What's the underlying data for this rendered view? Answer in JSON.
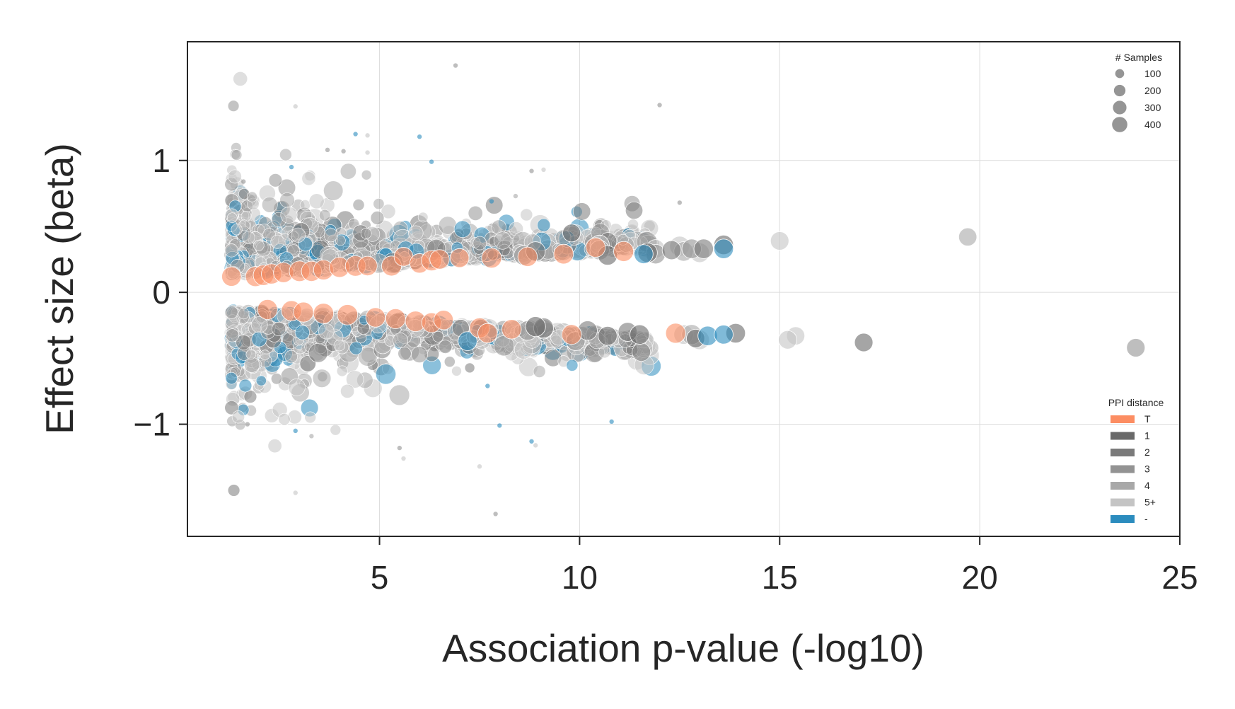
{
  "chart_data": {
    "type": "scatter",
    "xlabel": "Association p-value (-log10)",
    "ylabel": "Effect size (beta)",
    "xlim": [
      0.2,
      25
    ],
    "ylim": [
      -1.85,
      1.9
    ],
    "xticks": [
      5,
      10,
      15,
      20,
      25
    ],
    "yticks": [
      -1,
      0,
      1
    ],
    "ytick_labels": [
      "−1",
      "0",
      "1"
    ],
    "grid": true,
    "size_legend": {
      "title": "# Samples",
      "placement": "top-right",
      "entries": [
        {
          "label": "100",
          "value": 100
        },
        {
          "label": "200",
          "value": 200
        },
        {
          "label": "300",
          "value": 300
        },
        {
          "label": "400",
          "value": 400
        }
      ]
    },
    "color_legend": {
      "title": "PPI distance",
      "placement": "bottom-right",
      "entries": [
        {
          "label": "T",
          "color": "#fc8d62"
        },
        {
          "label": "1",
          "color": "#696969"
        },
        {
          "label": "2",
          "color": "#7a7a7a"
        },
        {
          "label": "3",
          "color": "#939393"
        },
        {
          "label": "4",
          "color": "#a8a8a8"
        },
        {
          "label": "5+",
          "color": "#c4c4c4"
        },
        {
          "label": "-",
          "color": "#2b8cbe"
        }
      ]
    },
    "point_alpha": 0.6,
    "series": [
      {
        "group": "T",
        "points": [
          [
            1.3,
            0.12,
            300
          ],
          [
            1.9,
            0.12,
            320
          ],
          [
            2.1,
            0.13,
            340
          ],
          [
            2.3,
            0.14,
            330
          ],
          [
            2.6,
            0.15,
            320
          ],
          [
            3.0,
            0.16,
            340
          ],
          [
            3.3,
            0.16,
            330
          ],
          [
            3.6,
            0.17,
            320
          ],
          [
            4.0,
            0.19,
            330
          ],
          [
            4.4,
            0.2,
            340
          ],
          [
            4.7,
            0.2,
            300
          ],
          [
            5.3,
            0.2,
            320
          ],
          [
            5.6,
            0.27,
            280
          ],
          [
            6.0,
            0.22,
            300
          ],
          [
            6.3,
            0.24,
            330
          ],
          [
            6.5,
            0.25,
            300
          ],
          [
            7.0,
            0.26,
            280
          ],
          [
            7.8,
            0.26,
            320
          ],
          [
            8.7,
            0.27,
            300
          ],
          [
            9.6,
            0.29,
            310
          ],
          [
            10.4,
            0.34,
            300
          ],
          [
            11.1,
            0.31,
            320
          ],
          [
            2.2,
            -0.13,
            320
          ],
          [
            2.8,
            -0.14,
            330
          ],
          [
            3.1,
            -0.15,
            320
          ],
          [
            3.6,
            -0.16,
            330
          ],
          [
            4.2,
            -0.17,
            340
          ],
          [
            4.9,
            -0.19,
            300
          ],
          [
            5.4,
            -0.2,
            320
          ],
          [
            5.9,
            -0.22,
            340
          ],
          [
            6.3,
            -0.23,
            310
          ],
          [
            6.6,
            -0.21,
            300
          ],
          [
            7.5,
            -0.27,
            320
          ],
          [
            7.7,
            -0.31,
            300
          ],
          [
            8.3,
            -0.28,
            300
          ],
          [
            9.8,
            -0.32,
            310
          ],
          [
            12.4,
            -0.31,
            320
          ]
        ]
      },
      {
        "group": "1",
        "points": [
          [
            9.8,
            0.45,
            240
          ],
          [
            10.7,
            0.28,
            300
          ],
          [
            11.7,
            0.3,
            300
          ],
          [
            13.6,
            0.36,
            300
          ],
          [
            17.1,
            -0.38,
            260
          ],
          [
            13.9,
            -0.31,
            300
          ],
          [
            11.5,
            -0.32,
            300
          ],
          [
            12.9,
            -0.35,
            260
          ],
          [
            10.7,
            -0.33,
            280
          ],
          [
            8.9,
            -0.26,
            320
          ]
        ]
      },
      {
        "group": "2",
        "points": [
          [
            8.9,
            0.31,
            300
          ],
          [
            12.3,
            0.32,
            280
          ],
          [
            13.1,
            0.33,
            300
          ],
          [
            10.2,
            -0.29,
            300
          ],
          [
            9.1,
            -0.27,
            320
          ],
          [
            11.2,
            -0.3,
            280
          ]
        ]
      },
      {
        "group": "3",
        "points": [
          [
            23.9,
            -0.42,
            260
          ],
          [
            8.6,
            0.28,
            300
          ],
          [
            11.9,
            0.29,
            300
          ],
          [
            12.8,
            0.33,
            300
          ],
          [
            9.9,
            -0.37,
            280
          ],
          [
            8.7,
            -0.29,
            300
          ]
        ]
      },
      {
        "group": "4",
        "points": [
          [
            19.7,
            0.42,
            250
          ],
          [
            12.6,
            0.31,
            300
          ],
          [
            10.5,
            0.32,
            300
          ],
          [
            9.1,
            -0.28,
            300
          ],
          [
            12.8,
            -0.32,
            320
          ]
        ]
      },
      {
        "group": "5+",
        "points": [
          [
            15.0,
            0.39,
            260
          ],
          [
            15.4,
            -0.33,
            250
          ],
          [
            15.2,
            -0.36,
            260
          ],
          [
            13.0,
            0.3,
            300
          ],
          [
            12.5,
            0.35,
            320
          ],
          [
            10.5,
            0.36,
            300
          ],
          [
            11.9,
            0.33,
            260
          ],
          [
            13.0,
            -0.36,
            300
          ],
          [
            12.6,
            -0.32,
            300
          ]
        ]
      },
      {
        "group": "-",
        "points": [
          [
            13.6,
            0.33,
            300
          ],
          [
            11.6,
            0.29,
            280
          ],
          [
            13.2,
            -0.33,
            300
          ],
          [
            13.6,
            -0.32,
            280
          ],
          [
            7.2,
            -0.37,
            280
          ]
        ]
      }
    ],
    "outliers": [
      [
        6.9,
        1.72,
        "3"
      ],
      [
        12.0,
        1.42,
        "3"
      ],
      [
        2.9,
        1.41,
        "5+"
      ],
      [
        4.4,
        1.2,
        "-"
      ],
      [
        4.7,
        1.19,
        "5+"
      ],
      [
        6.0,
        1.18,
        "-"
      ],
      [
        3.7,
        1.08,
        "3"
      ],
      [
        4.1,
        1.07,
        "3"
      ],
      [
        4.7,
        1.06,
        "5+"
      ],
      [
        6.3,
        0.99,
        "-"
      ],
      [
        8.8,
        0.92,
        "3"
      ],
      [
        9.1,
        0.93,
        "5+"
      ],
      [
        12.5,
        0.68,
        "3"
      ],
      [
        8.4,
        0.73,
        "4"
      ],
      [
        7.8,
        0.69,
        "-"
      ],
      [
        10.8,
        -0.98,
        "-"
      ],
      [
        8.0,
        -1.01,
        "-"
      ],
      [
        5.5,
        -1.18,
        "3"
      ],
      [
        5.6,
        -1.26,
        "5+"
      ],
      [
        7.5,
        -1.32,
        "5+"
      ],
      [
        7.9,
        -1.68,
        "3"
      ],
      [
        2.9,
        -1.52,
        "5+"
      ],
      [
        2.9,
        -1.05,
        "-"
      ],
      [
        3.3,
        -1.09,
        "4"
      ],
      [
        8.8,
        -1.13,
        "-"
      ],
      [
        8.9,
        -1.16,
        "5+"
      ],
      [
        1.7,
        -1.0,
        "3"
      ],
      [
        1.6,
        0.84,
        "3"
      ],
      [
        2.8,
        0.95,
        "-"
      ],
      [
        7.7,
        -0.71,
        "-"
      ]
    ]
  }
}
